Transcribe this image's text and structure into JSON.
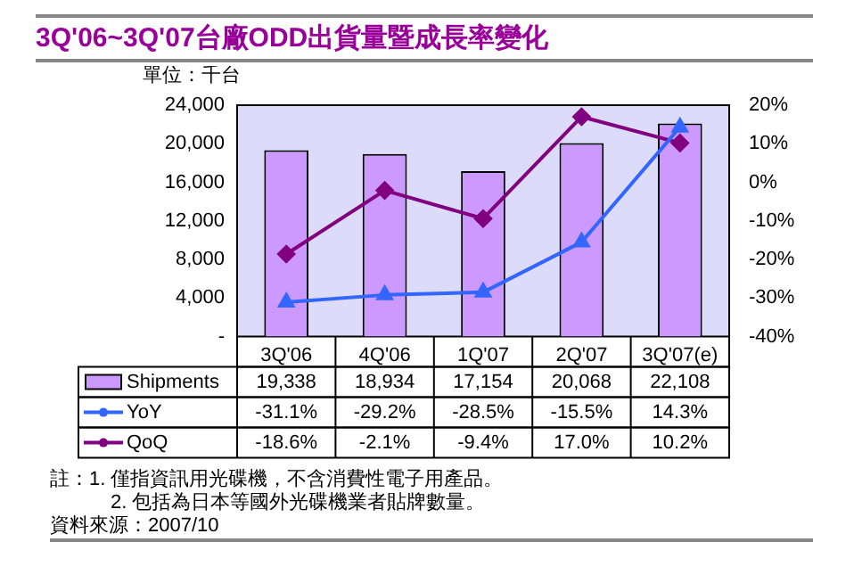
{
  "chart_data": {
    "type": "bar",
    "title": "3Q'06~3Q'07台廠ODD出貨量暨成長率變化",
    "ylabel": "單位：千台",
    "categories": [
      "3Q'06",
      "4Q'06",
      "1Q'07",
      "2Q'07",
      "3Q'07(e)"
    ],
    "series": [
      {
        "name": "Shipments",
        "color": "#cc99ff",
        "values": [
          19338,
          18934,
          17154,
          20068,
          22108
        ],
        "value_labels": [
          "19,338",
          "18,934",
          "17,154",
          "20,068",
          "22,108"
        ]
      },
      {
        "name": "YoY",
        "type": "line",
        "axis": "y2",
        "color": "#3366ff",
        "marker": "triangle",
        "values": [
          -31.1,
          -29.2,
          -28.5,
          -15.5,
          14.3
        ],
        "value_labels": [
          "-31.1%",
          "-29.2%",
          "-28.5%",
          "-15.5%",
          "14.3%"
        ]
      },
      {
        "name": "QoQ",
        "type": "line",
        "axis": "y2",
        "color": "#800080",
        "marker": "diamond",
        "values": [
          -18.6,
          -2.1,
          -9.4,
          17.0,
          10.2
        ],
        "value_labels": [
          "-18.6%",
          "-2.1%",
          "-9.4%",
          "17.0%",
          "10.2%"
        ]
      }
    ],
    "ylim": [
      0,
      24000
    ],
    "yticks": [
      {
        "value": 0,
        "label": "-"
      },
      {
        "value": 4000,
        "label": "4,000"
      },
      {
        "value": 8000,
        "label": "8,000"
      },
      {
        "value": 12000,
        "label": "12,000"
      },
      {
        "value": 16000,
        "label": "16,000"
      },
      {
        "value": 20000,
        "label": "20,000"
      },
      {
        "value": 24000,
        "label": "24,000"
      }
    ],
    "y2lim": [
      -40,
      20
    ],
    "y2ticks": [
      {
        "value": -40,
        "label": "-40%"
      },
      {
        "value": -30,
        "label": "-30%"
      },
      {
        "value": -20,
        "label": "-20%"
      },
      {
        "value": -10,
        "label": "-10%"
      },
      {
        "value": 0,
        "label": "0%"
      },
      {
        "value": 10,
        "label": "10%"
      },
      {
        "value": 20,
        "label": "20%"
      }
    ],
    "grid": false,
    "legend": "bottom",
    "annotations": [
      "註：1. 僅指資訊用光碟機，不含消費性電子用產品。",
      "2. 包括為日本等國外光碟機業者貼牌數量。",
      "資料來源：2007/10"
    ]
  }
}
